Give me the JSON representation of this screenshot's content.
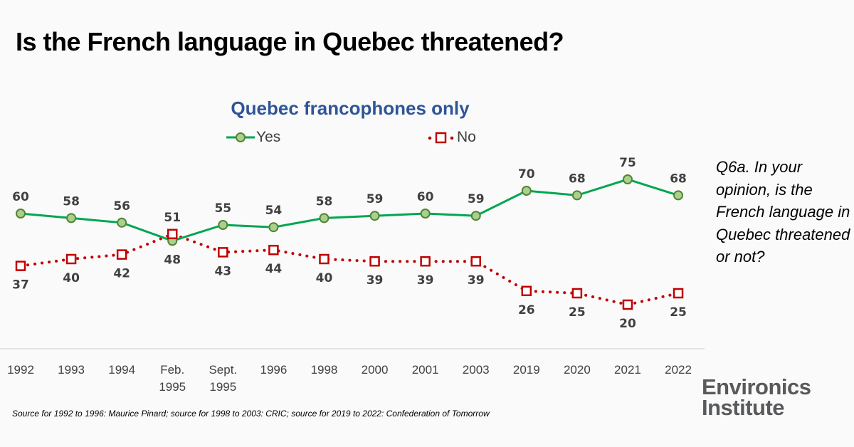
{
  "title": "Is the French language in Quebec threatened?",
  "question": "Q6a. In your opinion, is the French language in Quebec threatened or not?",
  "source": "Source for 1992  to 1996:  Maurice Pinard; source for 1998  to 2003:  CRIC; source for 2019  to 2022:  Confederation of Tomorrow",
  "logo": {
    "line1": "Environics",
    "line2": "Institute"
  },
  "colors": {
    "yes": "#00a651",
    "yes_marker_fill": "#a9d18e",
    "yes_marker_stroke": "#548235",
    "no": "#c00000",
    "subtitle": "#2f5597"
  },
  "chart_data": {
    "type": "line",
    "title": "Quebec francophones only",
    "xlabel": "",
    "ylabel": "",
    "ylim": [
      0,
      80
    ],
    "grid": false,
    "legend": "top-center",
    "categories": [
      "1992",
      "1993",
      "1994",
      "Feb. 1995",
      "Sept. 1995",
      "1996",
      "1998",
      "2000",
      "2001",
      "2003",
      "2019",
      "2020",
      "2021",
      "2022"
    ],
    "series": [
      {
        "name": "Yes",
        "values": [
          60,
          58,
          56,
          48,
          55,
          54,
          58,
          59,
          60,
          59,
          70,
          68,
          75,
          68
        ]
      },
      {
        "name": "No",
        "values": [
          37,
          40,
          42,
          51,
          43,
          44,
          40,
          39,
          39,
          39,
          26,
          25,
          20,
          25
        ]
      }
    ]
  }
}
